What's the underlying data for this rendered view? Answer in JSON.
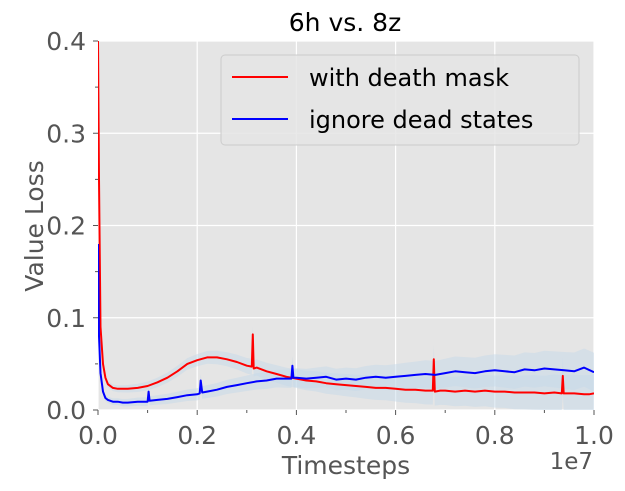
{
  "chart_data": {
    "type": "line",
    "title": "6h vs. 8z",
    "xlabel": "Timesteps",
    "ylabel": "Value Loss",
    "x_offset_label": "1e7",
    "xlim": [
      0.0,
      1.0
    ],
    "ylim": [
      0.0,
      0.4
    ],
    "x_ticks": [
      0.0,
      0.2,
      0.4,
      0.6,
      0.8,
      1.0
    ],
    "x_tick_labels": [
      "0.0",
      "0.2",
      "0.4",
      "0.6",
      "0.8",
      "1.0"
    ],
    "y_ticks": [
      0.0,
      0.1,
      0.2,
      0.3,
      0.4
    ],
    "y_tick_labels": [
      "0.0",
      "0.1",
      "0.2",
      "0.3",
      "0.4"
    ],
    "grid": true,
    "legend_position": "top-right",
    "style": {
      "background": "#e5e5e5",
      "grid_color": "#ffffff",
      "text_color": "#555555",
      "band_color": "#c6d9ea"
    },
    "series": [
      {
        "name": "with death mask",
        "color": "#ff0000",
        "x": [
          0.0,
          0.002,
          0.005,
          0.01,
          0.015,
          0.02,
          0.03,
          0.04,
          0.05,
          0.06,
          0.08,
          0.1,
          0.12,
          0.14,
          0.16,
          0.18,
          0.2,
          0.22,
          0.24,
          0.26,
          0.28,
          0.3,
          0.31,
          0.312,
          0.314,
          0.32,
          0.34,
          0.36,
          0.38,
          0.4,
          0.42,
          0.44,
          0.46,
          0.48,
          0.5,
          0.52,
          0.54,
          0.56,
          0.58,
          0.6,
          0.62,
          0.64,
          0.66,
          0.675,
          0.677,
          0.679,
          0.69,
          0.7,
          0.72,
          0.74,
          0.76,
          0.78,
          0.8,
          0.82,
          0.84,
          0.86,
          0.88,
          0.9,
          0.92,
          0.935,
          0.937,
          0.939,
          0.95,
          0.96,
          0.98,
          0.99,
          1.0
        ],
        "y": [
          0.4,
          0.25,
          0.09,
          0.05,
          0.035,
          0.028,
          0.024,
          0.023,
          0.023,
          0.023,
          0.024,
          0.026,
          0.03,
          0.035,
          0.042,
          0.05,
          0.054,
          0.057,
          0.057,
          0.055,
          0.052,
          0.048,
          0.047,
          0.082,
          0.045,
          0.046,
          0.042,
          0.039,
          0.036,
          0.034,
          0.032,
          0.031,
          0.029,
          0.028,
          0.027,
          0.026,
          0.025,
          0.024,
          0.024,
          0.023,
          0.022,
          0.022,
          0.021,
          0.021,
          0.055,
          0.02,
          0.021,
          0.021,
          0.02,
          0.021,
          0.02,
          0.021,
          0.02,
          0.02,
          0.019,
          0.019,
          0.019,
          0.018,
          0.019,
          0.018,
          0.037,
          0.018,
          0.018,
          0.018,
          0.017,
          0.017,
          0.018
        ]
      },
      {
        "name": "ignore dead states",
        "color": "#0000ff",
        "x": [
          0.0,
          0.002,
          0.005,
          0.01,
          0.015,
          0.02,
          0.03,
          0.04,
          0.05,
          0.06,
          0.08,
          0.1,
          0.102,
          0.104,
          0.12,
          0.14,
          0.16,
          0.18,
          0.2,
          0.205,
          0.207,
          0.21,
          0.22,
          0.24,
          0.26,
          0.28,
          0.3,
          0.32,
          0.34,
          0.36,
          0.38,
          0.39,
          0.392,
          0.394,
          0.4,
          0.42,
          0.44,
          0.46,
          0.48,
          0.5,
          0.52,
          0.54,
          0.56,
          0.58,
          0.6,
          0.62,
          0.64,
          0.66,
          0.68,
          0.7,
          0.72,
          0.74,
          0.76,
          0.78,
          0.8,
          0.82,
          0.84,
          0.86,
          0.88,
          0.9,
          0.92,
          0.94,
          0.96,
          0.98,
          1.0
        ],
        "y": [
          0.18,
          0.08,
          0.04,
          0.02,
          0.013,
          0.011,
          0.009,
          0.009,
          0.008,
          0.008,
          0.009,
          0.009,
          0.02,
          0.01,
          0.011,
          0.012,
          0.014,
          0.016,
          0.017,
          0.018,
          0.032,
          0.019,
          0.02,
          0.022,
          0.025,
          0.027,
          0.029,
          0.031,
          0.032,
          0.034,
          0.034,
          0.034,
          0.048,
          0.035,
          0.035,
          0.034,
          0.035,
          0.036,
          0.033,
          0.034,
          0.033,
          0.035,
          0.036,
          0.035,
          0.036,
          0.037,
          0.038,
          0.039,
          0.038,
          0.04,
          0.042,
          0.041,
          0.04,
          0.042,
          0.043,
          0.042,
          0.041,
          0.044,
          0.043,
          0.045,
          0.044,
          0.043,
          0.042,
          0.046,
          0.041
        ]
      }
    ]
  }
}
